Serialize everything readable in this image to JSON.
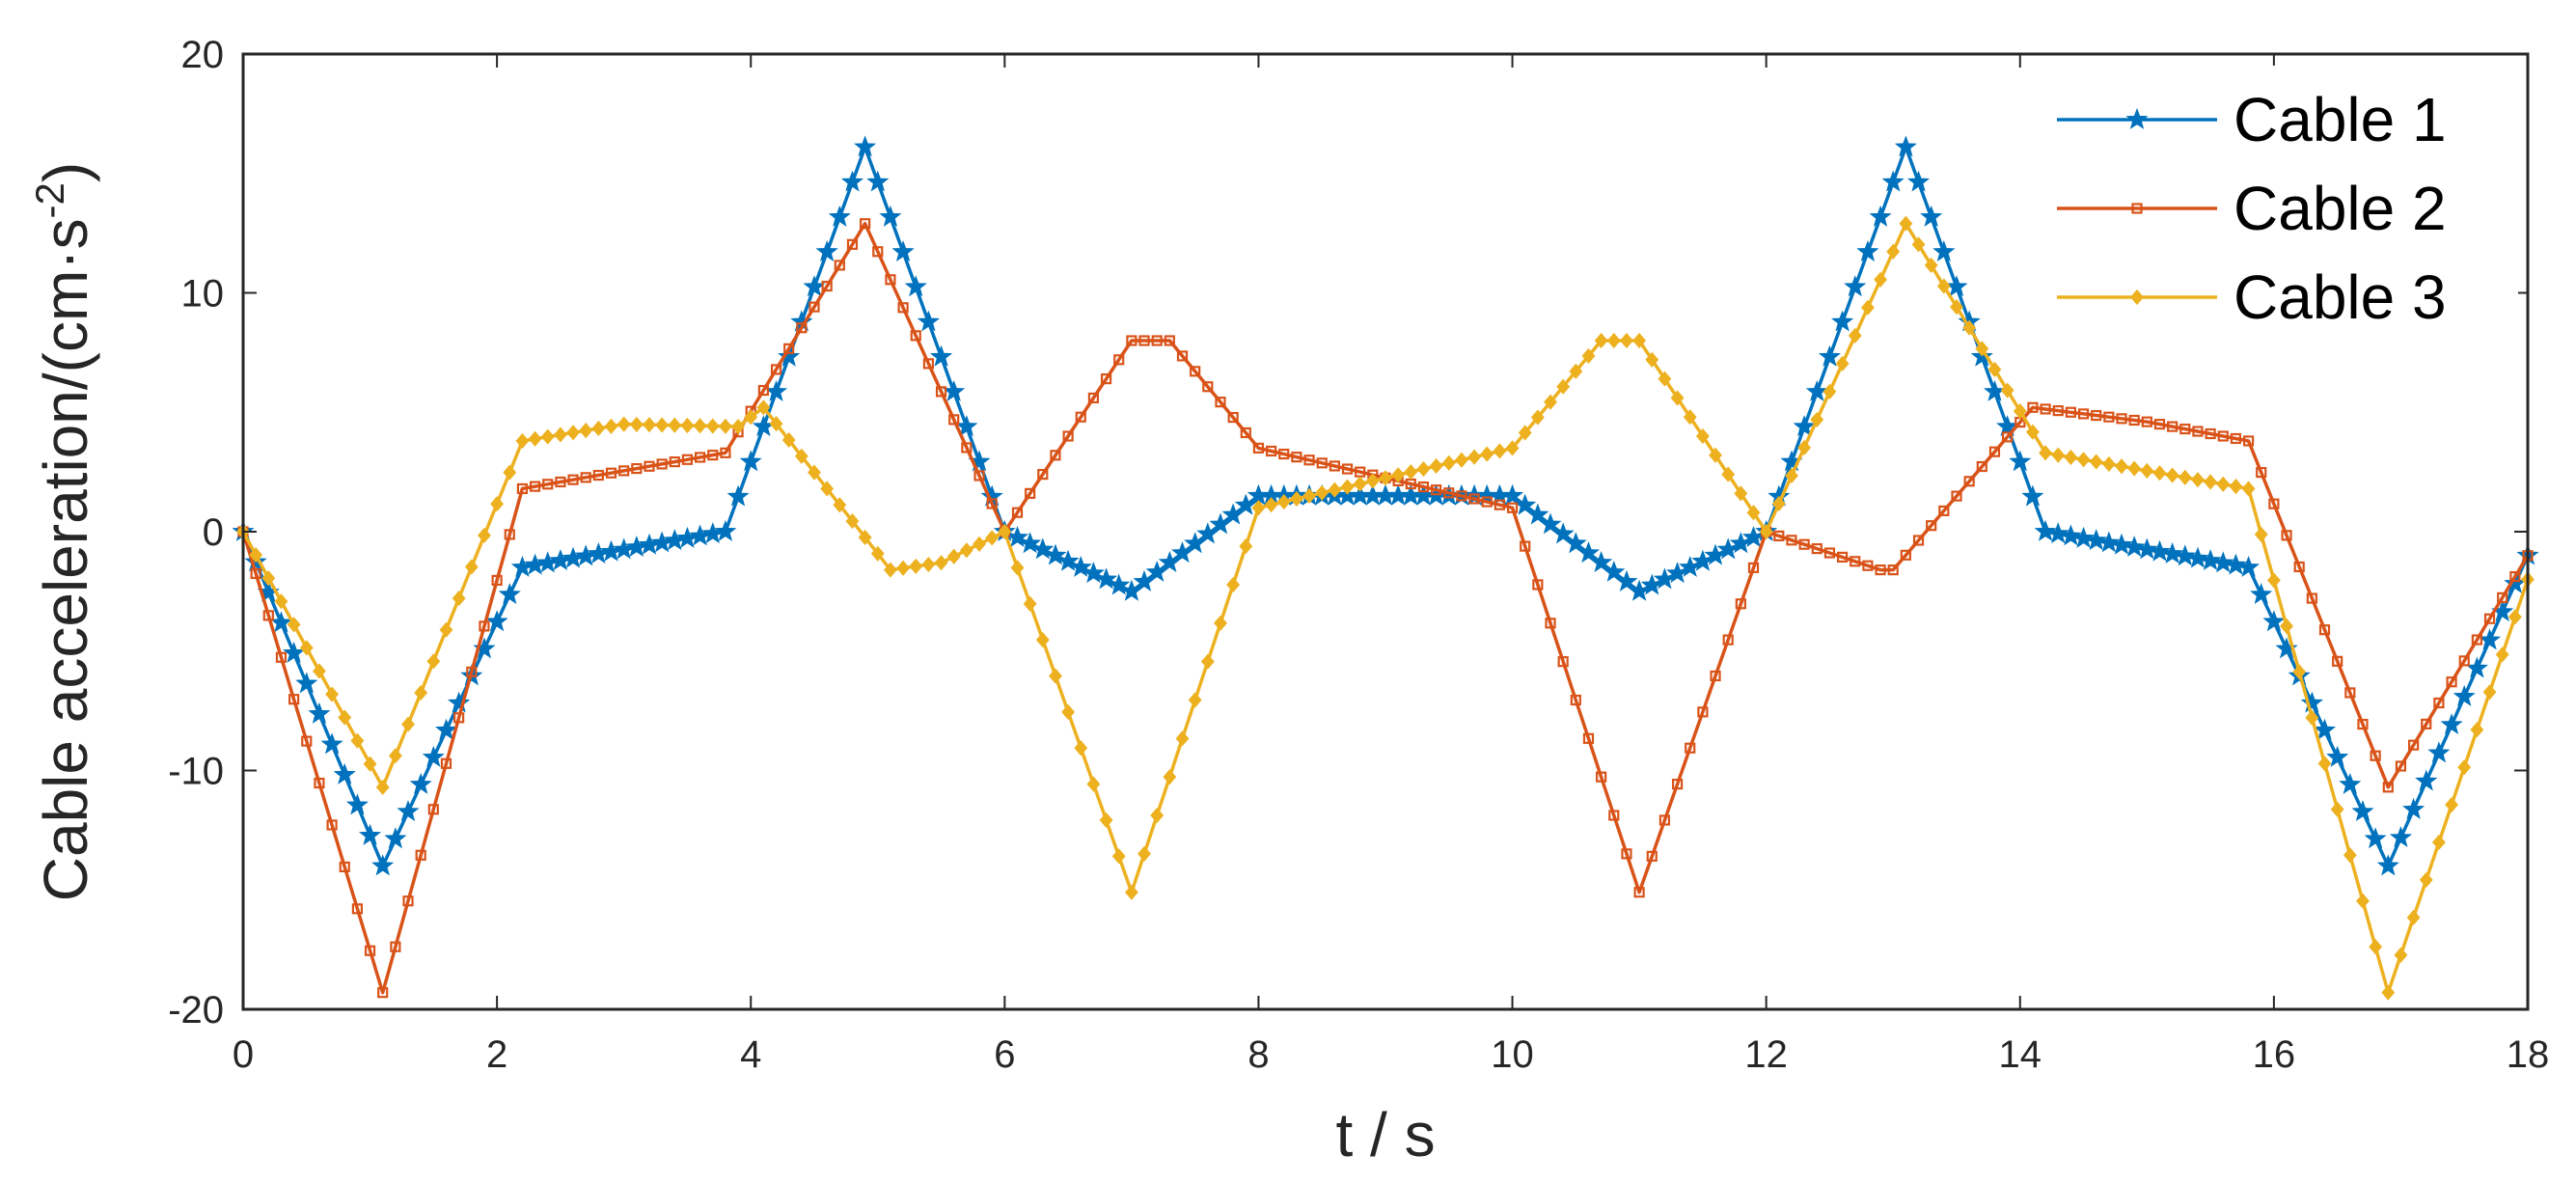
{
  "chart_data": {
    "type": "line",
    "title": "",
    "xlabel": "t / s",
    "ylabel_main": "Cable acceleration/(cm·s",
    "ylabel_sup": "-2",
    "ylabel_close": ")",
    "xlim": [
      0,
      18
    ],
    "ylim": [
      -20,
      20
    ],
    "xticks": [
      0,
      2,
      4,
      6,
      8,
      10,
      12,
      14,
      16,
      18
    ],
    "xtick_labels": [
      "0",
      "2",
      "4",
      "6",
      "8",
      "10",
      "12",
      "14",
      "16",
      "18"
    ],
    "yticks": [
      -20,
      -10,
      0,
      10,
      20
    ],
    "ytick_labels": [
      "-20",
      "-10",
      "0",
      "10",
      "20"
    ],
    "grid": false,
    "legend_position": "top-right",
    "series": [
      {
        "name": "Cable 1",
        "color": "#0072BD",
        "marker": "star",
        "points": [
          [
            0,
            0
          ],
          [
            1.1,
            -14
          ],
          [
            2.2,
            -1.5
          ],
          [
            3.8,
            0
          ],
          [
            4.9,
            16.1
          ],
          [
            6.0,
            0
          ],
          [
            7.0,
            -2.5
          ],
          [
            8.0,
            1.5
          ],
          [
            10.0,
            1.5
          ],
          [
            11.0,
            -2.5
          ],
          [
            12.0,
            0
          ],
          [
            13.1,
            16.1
          ],
          [
            14.2,
            0
          ],
          [
            15.8,
            -1.5
          ],
          [
            16.9,
            -14
          ],
          [
            18,
            -1
          ]
        ]
      },
      {
        "name": "Cable 2",
        "color": "#D95319",
        "marker": "square",
        "points": [
          [
            0,
            0
          ],
          [
            1.1,
            -19.3
          ],
          [
            2.2,
            1.8
          ],
          [
            3.8,
            3.3
          ],
          [
            4.9,
            12.9
          ],
          [
            6.0,
            0
          ],
          [
            7.0,
            8.0
          ],
          [
            7.3,
            8.0
          ],
          [
            8.0,
            3.5
          ],
          [
            10.0,
            1.0
          ],
          [
            11.0,
            -15.1
          ],
          [
            12.0,
            0
          ],
          [
            12.9,
            -1.6
          ],
          [
            13.0,
            -1.6
          ],
          [
            14.1,
            5.2
          ],
          [
            15.0,
            4.6
          ],
          [
            15.8,
            3.8
          ],
          [
            16.9,
            -10.7
          ],
          [
            18,
            -1
          ]
        ]
      },
      {
        "name": "Cable 3",
        "color": "#EDB120",
        "marker": "diamond",
        "points": [
          [
            0,
            0
          ],
          [
            1.1,
            -10.7
          ],
          [
            2.2,
            3.8
          ],
          [
            3.0,
            4.5
          ],
          [
            3.9,
            4.4
          ],
          [
            4.1,
            5.2
          ],
          [
            5.1,
            -1.6
          ],
          [
            5.5,
            -1.3
          ],
          [
            6.0,
            0
          ],
          [
            7.0,
            -15.1
          ],
          [
            8.0,
            1.0
          ],
          [
            10.0,
            3.5
          ],
          [
            10.7,
            8.0
          ],
          [
            11.0,
            8.0
          ],
          [
            12.0,
            0
          ],
          [
            13.1,
            12.9
          ],
          [
            14.2,
            3.3
          ],
          [
            15.8,
            1.8
          ],
          [
            16.9,
            -19.3
          ],
          [
            18,
            -2
          ]
        ]
      }
    ]
  }
}
